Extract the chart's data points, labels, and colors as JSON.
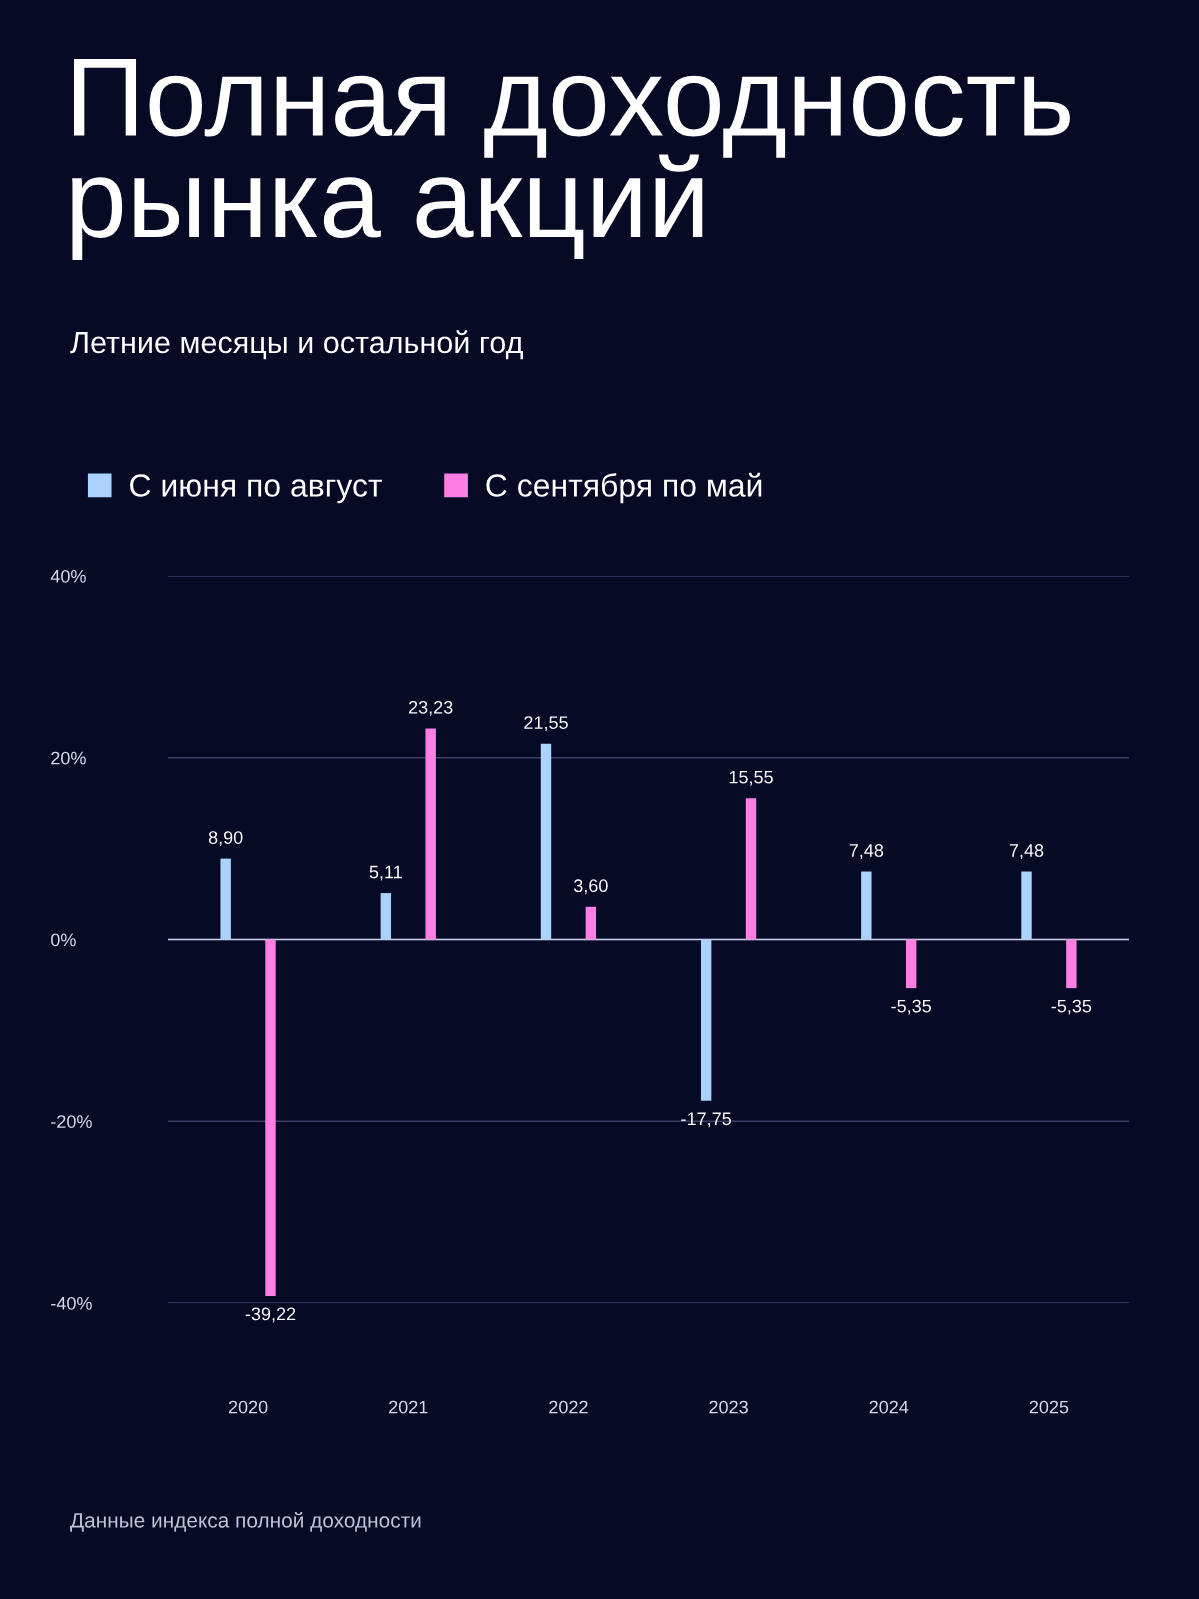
{
  "chart_data": {
    "type": "bar",
    "title": "Полная доходность\nрынка акций",
    "subtitle": "Летние месяцы и остальной год",
    "categories": [
      "2020",
      "2021",
      "2022",
      "2023",
      "2024",
      "2025"
    ],
    "series": [
      {
        "name": "С июня по август",
        "color": "#a9d2ff",
        "values": [
          8.9,
          5.11,
          21.55,
          -17.75,
          7.48,
          7.48
        ],
        "value_labels": [
          "8,90",
          "5,11",
          "21,55",
          "-17,75",
          "7,48",
          "7,48"
        ]
      },
      {
        "name": "С сентября по май",
        "color": "#ff7ee6",
        "values": [
          -39.22,
          23.23,
          3.6,
          15.55,
          -5.35,
          -5.35
        ],
        "value_labels": [
          "-39,22",
          "23,23",
          "3,60",
          "15,55",
          "-5,35",
          "-5,35"
        ]
      }
    ],
    "ylim": [
      -40,
      40
    ],
    "yticks": [
      {
        "value": -40,
        "label": "-40%"
      },
      {
        "value": -20,
        "label": "-20%"
      },
      {
        "value": 0,
        "label": "0%"
      },
      {
        "value": 20,
        "label": "20%"
      },
      {
        "value": 40,
        "label": "40%"
      }
    ],
    "ref_lines": [
      {
        "axis": "y",
        "value": 0,
        "color": "#c8cde8"
      }
    ],
    "grid": "y",
    "legend": "top left",
    "annotations": [
      "Данные индекса полной доходности"
    ]
  }
}
